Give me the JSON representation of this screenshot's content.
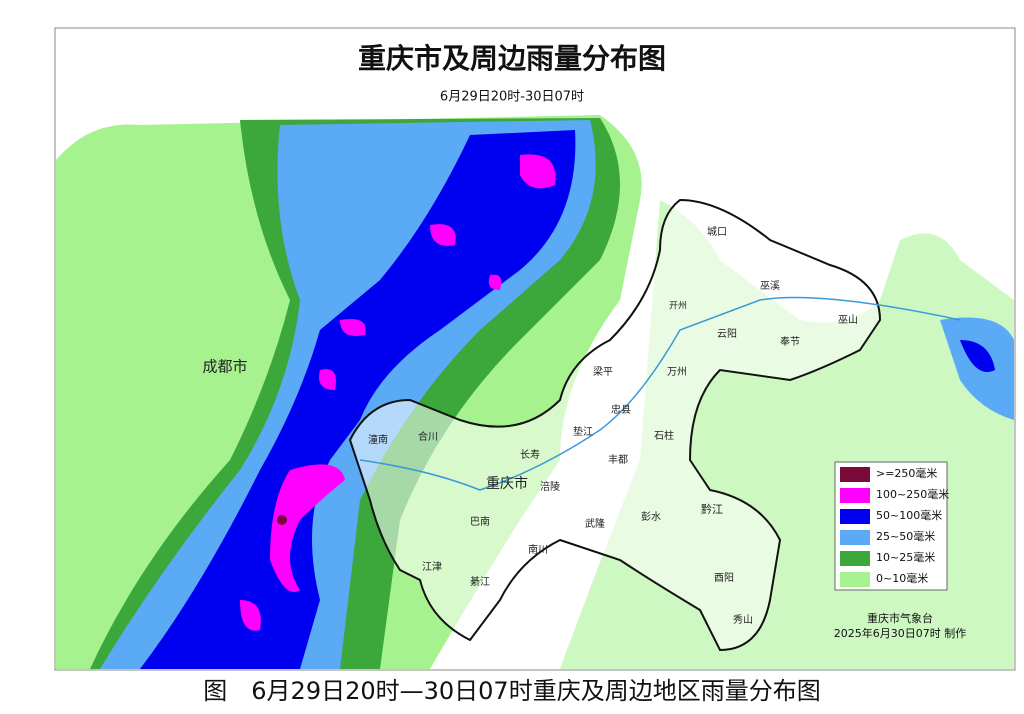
{
  "title": "重庆市及周边雨量分布图",
  "subtitle": "6月29日20时-30日07时",
  "legend": [
    {
      "label": ">=250毫米",
      "color": "#7a0a3a"
    },
    {
      "label": "100~250毫米",
      "color": "#ff00ff"
    },
    {
      "label": "50~100毫米",
      "color": "#0000f0"
    },
    {
      "label": "25~50毫米",
      "color": "#5aaaf5"
    },
    {
      "label": "10~25毫米",
      "color": "#3ca83c"
    },
    {
      "label": "0~10毫米",
      "color": "#a6f28f"
    }
  ],
  "places": [
    "成都市",
    "重庆市",
    "城口",
    "巫溪",
    "开州",
    "云阳",
    "奉节",
    "巫山",
    "梁平",
    "万州",
    "忠县",
    "垫江",
    "长寿",
    "涪陵",
    "丰都",
    "石柱",
    "武隆",
    "彭水",
    "黔江",
    "酉阳",
    "秀山",
    "南川",
    "巴南",
    "綦江",
    "江津",
    "合川",
    "潼南"
  ],
  "credit": {
    "agency": "重庆市气象台",
    "time": "2025年6月30日07时 制作"
  },
  "caption": "图　6月29日20时—30日07时重庆及周边地区雨量分布图"
}
